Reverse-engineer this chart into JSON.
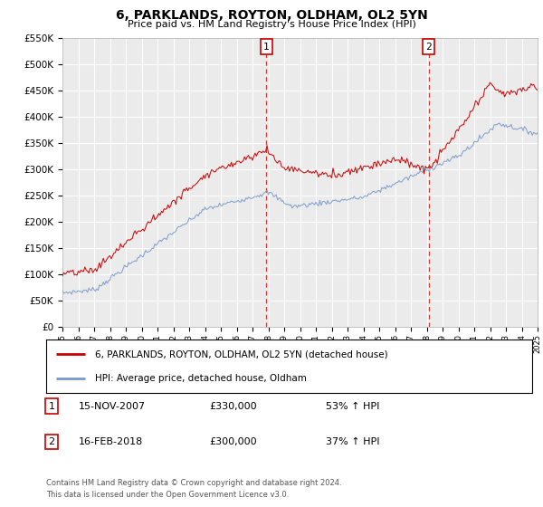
{
  "title": "6, PARKLANDS, ROYTON, OLDHAM, OL2 5YN",
  "subtitle": "Price paid vs. HM Land Registry's House Price Index (HPI)",
  "ylim": [
    0,
    550000
  ],
  "yticks": [
    0,
    50000,
    100000,
    150000,
    200000,
    250000,
    300000,
    350000,
    400000,
    450000,
    500000,
    550000
  ],
  "ytick_labels": [
    "£0",
    "£50K",
    "£100K",
    "£150K",
    "£200K",
    "£250K",
    "£300K",
    "£350K",
    "£400K",
    "£450K",
    "£500K",
    "£550K"
  ],
  "bg_color": "#ffffff",
  "plot_bg_color": "#ebebeb",
  "grid_color": "#ffffff",
  "red_color": "#cc0000",
  "blue_color": "#7799cc",
  "marker1_x": 2007.88,
  "marker2_x": 2018.12,
  "legend_label_red": "6, PARKLANDS, ROYTON, OLDHAM, OL2 5YN (detached house)",
  "legend_label_blue": "HPI: Average price, detached house, Oldham",
  "table_row1_num": "1",
  "table_row1_date": "15-NOV-2007",
  "table_row1_price": "£330,000",
  "table_row1_hpi": "53% ↑ HPI",
  "table_row2_num": "2",
  "table_row2_date": "16-FEB-2018",
  "table_row2_price": "£300,000",
  "table_row2_hpi": "37% ↑ HPI",
  "footnote": "Contains HM Land Registry data © Crown copyright and database right 2024.\nThis data is licensed under the Open Government Licence v3.0.",
  "xmin": 1995,
  "xmax": 2025
}
